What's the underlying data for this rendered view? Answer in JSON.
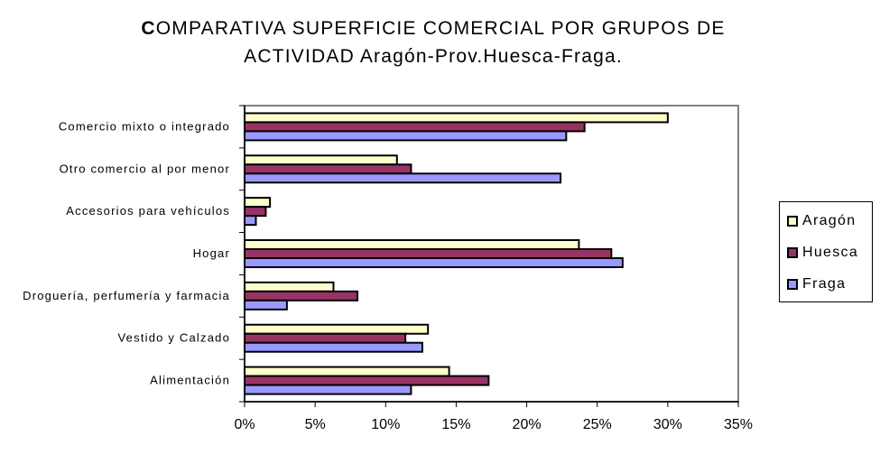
{
  "title": {
    "line1_first": "C",
    "line1_rest": "OMPARATIVA SUPERFICIE COMERCIAL POR GRUPOS DE",
    "line2": "ACTIVIDAD Aragón-Prov.Huesca-Fraga."
  },
  "chart_data": {
    "type": "bar",
    "orientation": "horizontal",
    "title": "COMPARATIVA SUPERFICIE COMERCIAL POR GRUPOS DE ACTIVIDAD Aragón-Prov.Huesca-Fraga.",
    "categories": [
      "Comercio mixto o integrado",
      "Otro comercio al por menor",
      "Accesorios para vehículos",
      "Hogar",
      "Droguería, perfumería y farmacia",
      "Vestido y Calzado",
      "Alimentación"
    ],
    "series": [
      {
        "name": "Aragón",
        "color": "#ffffcc",
        "values": [
          30.0,
          10.8,
          1.8,
          23.7,
          6.3,
          13.0,
          14.5
        ]
      },
      {
        "name": "Huesca",
        "color": "#993366",
        "values": [
          24.1,
          11.8,
          1.5,
          26.0,
          8.0,
          11.4,
          17.3
        ]
      },
      {
        "name": "Fraga",
        "color": "#9999ff",
        "values": [
          22.8,
          22.4,
          0.8,
          26.8,
          3.0,
          12.6,
          11.8
        ]
      }
    ],
    "xlim": [
      0,
      35
    ],
    "xticks": [
      "0%",
      "5%",
      "10%",
      "15%",
      "20%",
      "25%",
      "30%",
      "35%"
    ],
    "xlabel": "",
    "ylabel": "",
    "grid": false,
    "legend": "right"
  }
}
